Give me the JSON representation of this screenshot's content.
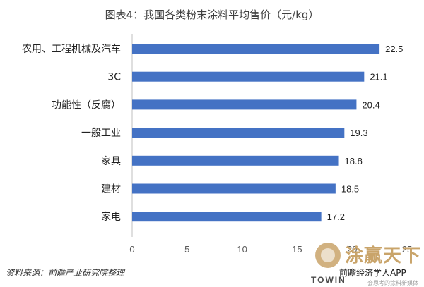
{
  "title": "图表4：我国各类粉末涂料平均售价（元/kg）",
  "source": "资料来源：前瞻产业研究院整理",
  "logo": {
    "brand": "涂赢天下",
    "app": "前瞻经济学人APP",
    "towin": "TOWIN",
    "slogan": "会思考的涂料新媒体"
  },
  "colors": {
    "bar": "#4472C4",
    "axis": "#bfbfbf",
    "text": "#222222"
  },
  "chart_data": {
    "type": "bar",
    "orientation": "horizontal",
    "title": "图表4：我国各类粉末涂料平均售价（元/kg）",
    "xlabel": "",
    "ylabel": "",
    "categories": [
      "农用、工程机械及汽车",
      "3C",
      "功能性（反腐）",
      "一般工业",
      "家具",
      "建材",
      "家电"
    ],
    "values": [
      22.5,
      21.1,
      20.4,
      19.3,
      18.8,
      18.5,
      17.2
    ],
    "data_labels": [
      "22.5",
      "21.1",
      "20.4",
      "19.3",
      "18.8",
      "18.5",
      "17.2"
    ],
    "xlim": [
      0,
      25
    ],
    "xticks": [
      0,
      5,
      10,
      15,
      20,
      25
    ],
    "grid": false,
    "legend": "none"
  }
}
